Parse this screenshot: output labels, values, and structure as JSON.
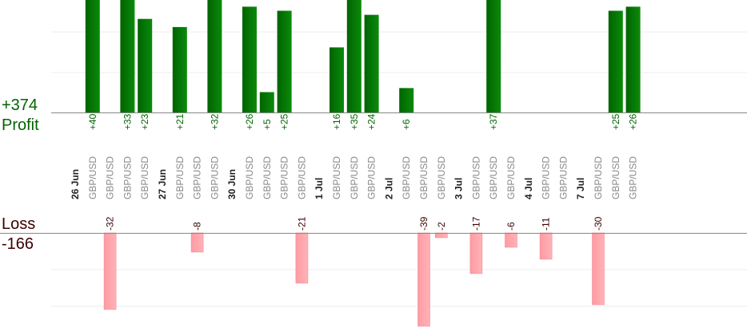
{
  "summary": {
    "profit_total": "+374",
    "profit_label": "Profit",
    "loss_label": "Loss",
    "loss_total": "-166"
  },
  "colors": {
    "profit_bar": "#006400",
    "profit_text": "#006400",
    "loss_bar": "#ffb3b8",
    "loss_text": "#3a0000",
    "axis": "#888888",
    "grid": "#eeeeee",
    "date_text": "#222222",
    "pair_text": "#888888"
  },
  "chart_data": {
    "type": "bar",
    "title": "",
    "xlabel": "",
    "ylabel": "",
    "grid": true,
    "legend": "none",
    "columns": [
      {
        "label": "26 Jun",
        "kind": "date"
      },
      {
        "label": "GBP/USD",
        "kind": "trade",
        "profit": 40
      },
      {
        "label": "GBP/USD",
        "kind": "trade",
        "loss": -32
      },
      {
        "label": "GBP/USD",
        "kind": "trade",
        "profit": 33
      },
      {
        "label": "GBP/USD",
        "kind": "trade",
        "profit": 23
      },
      {
        "label": "27 Jun",
        "kind": "date"
      },
      {
        "label": "GBP/USD",
        "kind": "trade",
        "profit": 21
      },
      {
        "label": "GBP/USD",
        "kind": "trade",
        "loss": -8
      },
      {
        "label": "GBP/USD",
        "kind": "trade",
        "profit": 32
      },
      {
        "label": "30 Jun",
        "kind": "date"
      },
      {
        "label": "GBP/USD",
        "kind": "trade",
        "profit": 26
      },
      {
        "label": "GBP/USD",
        "kind": "trade",
        "profit": 5
      },
      {
        "label": "GBP/USD",
        "kind": "trade",
        "profit": 25
      },
      {
        "label": "GBP/USD",
        "kind": "trade",
        "loss": -21
      },
      {
        "label": "1 Jul",
        "kind": "date"
      },
      {
        "label": "GBP/USD",
        "kind": "trade",
        "profit": 16
      },
      {
        "label": "GBP/USD",
        "kind": "trade",
        "profit": 35
      },
      {
        "label": "GBP/USD",
        "kind": "trade",
        "profit": 24
      },
      {
        "label": "2 Jul",
        "kind": "date"
      },
      {
        "label": "GBP/USD",
        "kind": "trade",
        "profit": 6
      },
      {
        "label": "GBP/USD",
        "kind": "trade",
        "loss": -39
      },
      {
        "label": "GBP/USD",
        "kind": "trade",
        "loss": -2
      },
      {
        "label": "3 Jul",
        "kind": "date"
      },
      {
        "label": "GBP/USD",
        "kind": "trade",
        "loss": -17
      },
      {
        "label": "GBP/USD",
        "kind": "trade",
        "profit": 37
      },
      {
        "label": "GBP/USD",
        "kind": "trade",
        "loss": -6
      },
      {
        "label": "4 Jul",
        "kind": "date"
      },
      {
        "label": "GBP/USD",
        "kind": "trade",
        "loss": -11
      },
      {
        "label": "GBP/USD",
        "kind": "trade"
      },
      {
        "label": "7 Jul",
        "kind": "date"
      },
      {
        "label": "GBP/USD",
        "kind": "trade",
        "loss": -30
      },
      {
        "label": "GBP/USD",
        "kind": "trade",
        "profit": 25
      },
      {
        "label": "GBP/USD",
        "kind": "trade",
        "profit": 26
      }
    ]
  }
}
